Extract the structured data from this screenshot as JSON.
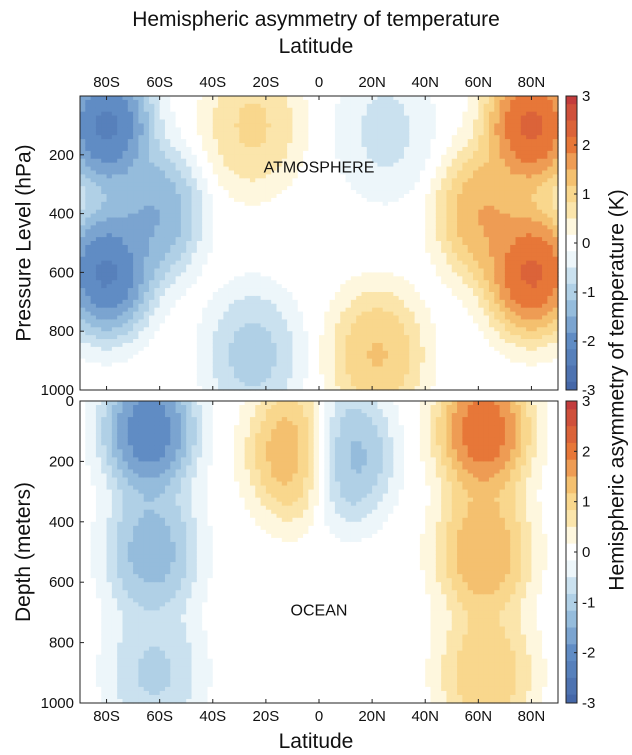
{
  "figure": {
    "title": "Hemispheric asymmetry of temperature",
    "top_axis_label": "Latitude",
    "bottom_axis_label": "Latitude",
    "colorbar_label": "Hemispheric asymmetry of temperature (K)"
  },
  "chart_data": [
    {
      "type": "heatmap",
      "panel": "atmosphere",
      "annotation": "ATMOSPHERE",
      "xlabel": "Latitude",
      "ylabel": "Pressure Level (hPa)",
      "xticks": [
        "80S",
        "60S",
        "40S",
        "20S",
        "0",
        "20N",
        "40N",
        "60N",
        "80N"
      ],
      "xtick_values": [
        -80,
        -60,
        -40,
        -20,
        0,
        20,
        40,
        60,
        80
      ],
      "xlim": [
        -90,
        90
      ],
      "yticks": [
        200,
        400,
        600,
        800,
        1000
      ],
      "ylim": [
        1000,
        0
      ],
      "y_reversed": true,
      "colorbar": {
        "ticks": [
          3,
          2,
          1,
          0,
          -1,
          -2,
          -3
        ],
        "range": [
          -3,
          3
        ]
      },
      "features": [
        {
          "lat": -80,
          "level": 100,
          "value": -3.0
        },
        {
          "lat": -80,
          "level": 600,
          "value": -3.0
        },
        {
          "lat": -62,
          "level": 400,
          "value": -2.0
        },
        {
          "lat": -25,
          "level": 100,
          "value": 1.2
        },
        {
          "lat": -25,
          "level": 880,
          "value": -1.3
        },
        {
          "lat": 25,
          "level": 120,
          "value": -0.8
        },
        {
          "lat": 22,
          "level": 880,
          "value": 1.6
        },
        {
          "lat": 62,
          "level": 400,
          "value": 2.0
        },
        {
          "lat": 80,
          "level": 100,
          "value": 3.0
        },
        {
          "lat": 80,
          "level": 600,
          "value": 3.0
        }
      ]
    },
    {
      "type": "heatmap",
      "panel": "ocean",
      "annotation": "OCEAN",
      "xlabel": "Latitude",
      "ylabel": "Depth (meters)",
      "xticks": [
        "80S",
        "60S",
        "40S",
        "20S",
        "0",
        "20N",
        "40N",
        "60N",
        "80N"
      ],
      "xtick_values": [
        -80,
        -60,
        -40,
        -20,
        0,
        20,
        40,
        60,
        80
      ],
      "xlim": [
        -90,
        90
      ],
      "yticks": [
        0,
        200,
        400,
        600,
        800,
        1000
      ],
      "ylim": [
        1000,
        0
      ],
      "y_reversed": true,
      "colorbar": {
        "ticks": [
          3,
          2,
          1,
          0,
          -1,
          -2,
          -3
        ],
        "range": [
          -3,
          3
        ]
      },
      "features": [
        {
          "lat": -64,
          "level": 100,
          "value": -2.8
        },
        {
          "lat": -63,
          "level": 500,
          "value": -1.8
        },
        {
          "lat": -62,
          "level": 900,
          "value": -1.2
        },
        {
          "lat": -9,
          "level": 170,
          "value": 2.0
        },
        {
          "lat": 10,
          "level": 180,
          "value": -1.8
        },
        {
          "lat": 62,
          "level": 100,
          "value": 2.8
        },
        {
          "lat": 62,
          "level": 500,
          "value": 2.0
        },
        {
          "lat": 63,
          "level": 900,
          "value": 1.5
        }
      ]
    }
  ]
}
